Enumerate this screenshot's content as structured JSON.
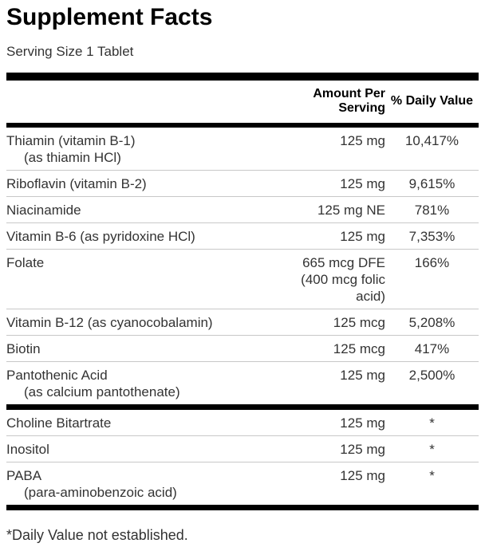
{
  "label": {
    "title": "Supplement Facts",
    "serving_size": "Serving Size 1 Tablet",
    "columns": {
      "amount": "Amount Per\nServing",
      "dv": "% Daily Value"
    },
    "rows": [
      {
        "name": "Thiamin (vitamin B-1)",
        "sub": "(as thiamin HCl)",
        "amount": "125 mg",
        "dv": "10,417%"
      },
      {
        "name": "Riboflavin (vitamin B-2)",
        "amount": "125 mg",
        "dv": "9,615%"
      },
      {
        "name": "Niacinamide",
        "amount": "125 mg NE",
        "dv": "781%"
      },
      {
        "name": "Vitamin B-6 (as pyridoxine HCl)",
        "amount": "125 mg",
        "dv": "7,353%"
      },
      {
        "name": "Folate",
        "amount": "665 mcg DFE\n(400 mcg folic\nacid)",
        "dv": "166%"
      },
      {
        "name": "Vitamin B-12 (as cyanocobalamin)",
        "amount": "125 mcg",
        "dv": "5,208%"
      },
      {
        "name": "Biotin",
        "amount": "125 mcg",
        "dv": "417%"
      },
      {
        "name": "Pantothenic Acid",
        "sub": "(as calcium pantothenate)",
        "amount": "125 mg",
        "dv": "2,500%"
      },
      {
        "name": "Choline Bitartrate",
        "amount": "125 mg",
        "dv": "*"
      },
      {
        "name": "Inositol",
        "amount": "125 mg",
        "dv": "*"
      },
      {
        "name": "PABA",
        "sub": "(para-aminobenzoic acid)",
        "amount": "125 mg",
        "dv": "*"
      }
    ],
    "footnote": "*Daily Value not established.",
    "colors": {
      "background": "#ffffff",
      "heading_text": "#000000",
      "body_text": "#333333",
      "rule_heavy": "#000000",
      "rule_light": "#c8c8c8"
    }
  }
}
